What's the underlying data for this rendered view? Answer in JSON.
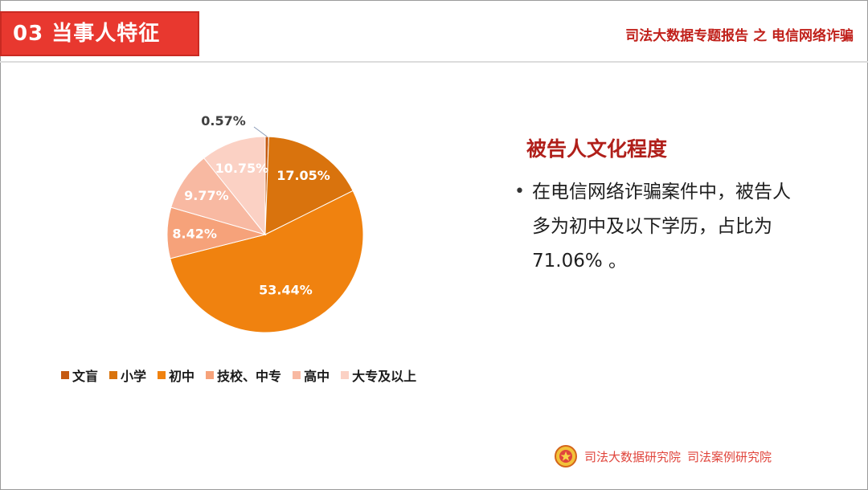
{
  "header": {
    "section_label": "03  当事人特征",
    "report_title": "司法大数据专题报告 之 电信网络诈骗"
  },
  "text_panel": {
    "title": "被告人文化程度",
    "bullet": "在电信网络诈骗案件中，被告人多为初中及以下学历，占比为71.06% 。"
  },
  "footer": {
    "org1": "司法大数据研究院",
    "org2": "司法案例研究院"
  },
  "colors": {
    "accent_red": "#e8382f",
    "title_red": "#b01f1a"
  },
  "chart_data": {
    "type": "pie",
    "categories": [
      "文盲",
      "小学",
      "初中",
      "技校、中专",
      "高中",
      "大专及以上"
    ],
    "values": [
      0.57,
      17.05,
      53.44,
      8.42,
      9.77,
      10.75
    ],
    "data_labels": [
      "0.57%",
      "17.05%",
      "53.44%",
      "8.42%",
      "9.77%",
      "10.75%"
    ],
    "colors": [
      "#c55a11",
      "#d9730d",
      "#f0820f",
      "#f6a27a",
      "#f8b9a2",
      "#fbd1c4"
    ],
    "legend_position": "bottom"
  }
}
